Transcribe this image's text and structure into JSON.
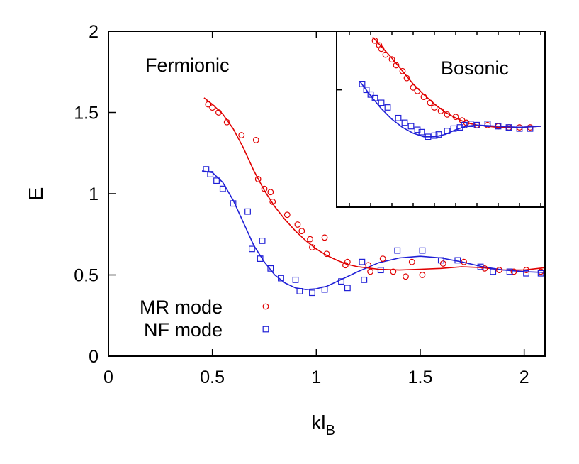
{
  "chart_data": [
    {
      "type": "scatter",
      "title": "",
      "xlabel": "kl",
      "xlabel_sub": "B",
      "ylabel": "E",
      "xlim": [
        0,
        2.1
      ],
      "ylim": [
        0,
        2
      ],
      "xticks": [
        0,
        0.5,
        1,
        1.5,
        2
      ],
      "xtick_labels": [
        "0",
        "0.5",
        "1",
        "1.5",
        "2"
      ],
      "yticks": [
        0,
        0.5,
        1,
        1.5,
        2
      ],
      "ytick_labels": [
        "0",
        "0.5",
        "1",
        "1.5",
        "2"
      ],
      "annotation": "Fermionic",
      "legend": [
        {
          "label": "MR mode",
          "color": "#e00000",
          "marker": "circle"
        },
        {
          "label": "NF mode",
          "color": "#1f1fd6",
          "marker": "square"
        }
      ],
      "series": [
        {
          "name": "MR mode",
          "color": "#e00000",
          "marker": "circle",
          "points": [
            [
              0.48,
              1.55
            ],
            [
              0.5,
              1.53
            ],
            [
              0.53,
              1.5
            ],
            [
              0.57,
              1.44
            ],
            [
              0.64,
              1.36
            ],
            [
              0.71,
              1.33
            ],
            [
              0.72,
              1.09
            ],
            [
              0.75,
              1.03
            ],
            [
              0.78,
              1.01
            ],
            [
              0.79,
              0.95
            ],
            [
              0.86,
              0.87
            ],
            [
              0.91,
              0.81
            ],
            [
              0.93,
              0.77
            ],
            [
              0.97,
              0.72
            ],
            [
              0.98,
              0.67
            ],
            [
              1.04,
              0.73
            ],
            [
              1.05,
              0.63
            ],
            [
              1.14,
              0.56
            ],
            [
              1.15,
              0.58
            ],
            [
              1.25,
              0.56
            ],
            [
              1.26,
              0.52
            ],
            [
              1.32,
              0.6
            ],
            [
              1.37,
              0.52
            ],
            [
              1.43,
              0.49
            ],
            [
              1.46,
              0.58
            ],
            [
              1.51,
              0.5
            ],
            [
              1.61,
              0.57
            ],
            [
              1.71,
              0.58
            ],
            [
              1.81,
              0.54
            ],
            [
              1.88,
              0.53
            ],
            [
              1.95,
              0.52
            ],
            [
              2.01,
              0.53
            ],
            [
              2.08,
              0.52
            ]
          ],
          "fit": [
            [
              0.46,
              1.59
            ],
            [
              0.5,
              1.55
            ],
            [
              0.55,
              1.49
            ],
            [
              0.6,
              1.4
            ],
            [
              0.65,
              1.28
            ],
            [
              0.7,
              1.14
            ],
            [
              0.75,
              1.02
            ],
            [
              0.8,
              0.92
            ],
            [
              0.85,
              0.84
            ],
            [
              0.9,
              0.77
            ],
            [
              0.95,
              0.71
            ],
            [
              1.0,
              0.66
            ],
            [
              1.05,
              0.62
            ],
            [
              1.1,
              0.59
            ],
            [
              1.15,
              0.565
            ],
            [
              1.2,
              0.55
            ],
            [
              1.3,
              0.535
            ],
            [
              1.4,
              0.53
            ],
            [
              1.5,
              0.535
            ],
            [
              1.6,
              0.54
            ],
            [
              1.7,
              0.55
            ],
            [
              1.8,
              0.545
            ],
            [
              1.9,
              0.53
            ],
            [
              2.0,
              0.53
            ],
            [
              2.1,
              0.545
            ]
          ]
        },
        {
          "name": "NF mode",
          "color": "#1f1fd6",
          "marker": "square",
          "points": [
            [
              0.47,
              1.15
            ],
            [
              0.49,
              1.12
            ],
            [
              0.52,
              1.08
            ],
            [
              0.55,
              1.03
            ],
            [
              0.6,
              0.94
            ],
            [
              0.67,
              0.89
            ],
            [
              0.69,
              0.66
            ],
            [
              0.73,
              0.6
            ],
            [
              0.74,
              0.71
            ],
            [
              0.78,
              0.54
            ],
            [
              0.83,
              0.48
            ],
            [
              0.9,
              0.47
            ],
            [
              0.92,
              0.4
            ],
            [
              0.98,
              0.39
            ],
            [
              1.04,
              0.41
            ],
            [
              1.12,
              0.46
            ],
            [
              1.15,
              0.42
            ],
            [
              1.22,
              0.58
            ],
            [
              1.23,
              0.47
            ],
            [
              1.31,
              0.53
            ],
            [
              1.39,
              0.65
            ],
            [
              1.51,
              0.65
            ],
            [
              1.6,
              0.59
            ],
            [
              1.68,
              0.59
            ],
            [
              1.79,
              0.55
            ],
            [
              1.85,
              0.52
            ],
            [
              1.93,
              0.52
            ],
            [
              2.01,
              0.51
            ],
            [
              2.08,
              0.51
            ]
          ],
          "fit": [
            [
              0.45,
              1.14
            ],
            [
              0.5,
              1.13
            ],
            [
              0.55,
              1.07
            ],
            [
              0.6,
              0.96
            ],
            [
              0.65,
              0.82
            ],
            [
              0.7,
              0.68
            ],
            [
              0.75,
              0.58
            ],
            [
              0.8,
              0.5
            ],
            [
              0.85,
              0.45
            ],
            [
              0.9,
              0.42
            ],
            [
              0.95,
              0.41
            ],
            [
              1.0,
              0.415
            ],
            [
              1.05,
              0.43
            ],
            [
              1.1,
              0.46
            ],
            [
              1.2,
              0.52
            ],
            [
              1.3,
              0.575
            ],
            [
              1.4,
              0.605
            ],
            [
              1.5,
              0.615
            ],
            [
              1.6,
              0.605
            ],
            [
              1.7,
              0.58
            ],
            [
              1.8,
              0.55
            ],
            [
              1.9,
              0.53
            ],
            [
              2.0,
              0.52
            ],
            [
              2.1,
              0.515
            ]
          ]
        }
      ]
    },
    {
      "type": "scatter",
      "title": "",
      "annotation": "Bosonic",
      "xlim": [
        0,
        2.1
      ],
      "ylim": [
        0.5,
        2.0
      ],
      "series": [
        {
          "name": "MR mode",
          "color": "#e00000",
          "marker": "circle",
          "points": [
            [
              1.32,
              1.92
            ],
            [
              1.34,
              1.88
            ],
            [
              1.35,
              1.85
            ],
            [
              1.37,
              1.8
            ],
            [
              1.4,
              1.76
            ],
            [
              1.42,
              1.71
            ],
            [
              1.45,
              1.66
            ],
            [
              1.47,
              1.6
            ],
            [
              1.5,
              1.52
            ],
            [
              1.52,
              1.49
            ],
            [
              1.55,
              1.44
            ],
            [
              1.58,
              1.39
            ],
            [
              1.6,
              1.35
            ],
            [
              1.63,
              1.32
            ],
            [
              1.66,
              1.29
            ],
            [
              1.7,
              1.27
            ],
            [
              1.73,
              1.24
            ],
            [
              1.75,
              1.22
            ],
            [
              1.8,
              1.2
            ],
            [
              1.85,
              1.2
            ],
            [
              1.9,
              1.19
            ],
            [
              1.95,
              1.18
            ],
            [
              2.0,
              1.18
            ],
            [
              2.05,
              1.18
            ]
          ],
          "fit": [
            [
              1.31,
              1.95
            ],
            [
              1.35,
              1.87
            ],
            [
              1.4,
              1.77
            ],
            [
              1.45,
              1.66
            ],
            [
              1.5,
              1.55
            ],
            [
              1.55,
              1.46
            ],
            [
              1.6,
              1.38
            ],
            [
              1.65,
              1.31
            ],
            [
              1.7,
              1.26
            ],
            [
              1.75,
              1.22
            ],
            [
              1.8,
              1.2
            ],
            [
              1.9,
              1.18
            ],
            [
              2.0,
              1.18
            ],
            [
              2.1,
              1.19
            ]
          ]
        },
        {
          "name": "NF mode",
          "color": "#1f1fd6",
          "marker": "square",
          "points": [
            [
              1.26,
              1.55
            ],
            [
              1.28,
              1.5
            ],
            [
              1.3,
              1.46
            ],
            [
              1.32,
              1.43
            ],
            [
              1.35,
              1.39
            ],
            [
              1.38,
              1.35
            ],
            [
              1.43,
              1.26
            ],
            [
              1.46,
              1.22
            ],
            [
              1.49,
              1.19
            ],
            [
              1.52,
              1.16
            ],
            [
              1.54,
              1.14
            ],
            [
              1.57,
              1.1
            ],
            [
              1.6,
              1.11
            ],
            [
              1.62,
              1.12
            ],
            [
              1.66,
              1.15
            ],
            [
              1.69,
              1.17
            ],
            [
              1.72,
              1.18
            ],
            [
              1.74,
              1.2
            ],
            [
              1.77,
              1.21
            ],
            [
              1.8,
              1.2
            ],
            [
              1.85,
              1.21
            ],
            [
              1.9,
              1.19
            ],
            [
              1.95,
              1.18
            ],
            [
              2.0,
              1.17
            ],
            [
              2.05,
              1.17
            ]
          ],
          "fit": [
            [
              1.25,
              1.57
            ],
            [
              1.3,
              1.45
            ],
            [
              1.35,
              1.34
            ],
            [
              1.4,
              1.25
            ],
            [
              1.45,
              1.18
            ],
            [
              1.5,
              1.13
            ],
            [
              1.55,
              1.1
            ],
            [
              1.6,
              1.1
            ],
            [
              1.65,
              1.12
            ],
            [
              1.7,
              1.16
            ],
            [
              1.75,
              1.19
            ],
            [
              1.8,
              1.2
            ],
            [
              1.9,
              1.19
            ],
            [
              2.0,
              1.18
            ],
            [
              2.1,
              1.19
            ]
          ]
        }
      ]
    }
  ]
}
